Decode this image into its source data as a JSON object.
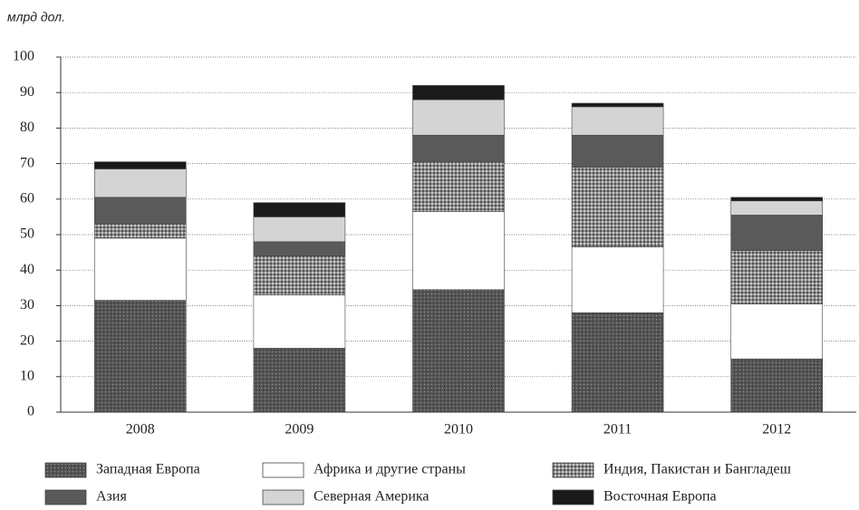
{
  "chart_data": {
    "type": "stacked_bar",
    "y_label": "млрд дол.",
    "categories": [
      "2008",
      "2009",
      "2010",
      "2011",
      "2012"
    ],
    "series": [
      {
        "name": "Западная Европа",
        "color": "#555555",
        "values": [
          31.5,
          18,
          34.5,
          28,
          15
        ]
      },
      {
        "name": "Африка и другие страны",
        "color": "#ffffff",
        "values": [
          17.5,
          15,
          22,
          18.5,
          15.5
        ]
      },
      {
        "name": "Индия, Пакистан и Бангладеш",
        "color": "#8a8a8a",
        "values": [
          4,
          11,
          14,
          22.5,
          15
        ]
      },
      {
        "name": "Азия",
        "color": "#5a5a5a",
        "values": [
          7.5,
          4,
          7.5,
          9,
          10
        ]
      },
      {
        "name": "Северная Америка",
        "color": "#d4d4d4",
        "values": [
          8,
          7,
          10,
          8,
          4
        ]
      },
      {
        "name": "Восточная Европа",
        "color": "#1a1a1a",
        "values": [
          2,
          4,
          4,
          1,
          1
        ]
      }
    ],
    "ylim": [
      0,
      100
    ],
    "yticks": [
      0,
      10,
      20,
      30,
      40,
      50,
      60,
      70,
      80,
      90,
      100
    ],
    "grid": true
  }
}
